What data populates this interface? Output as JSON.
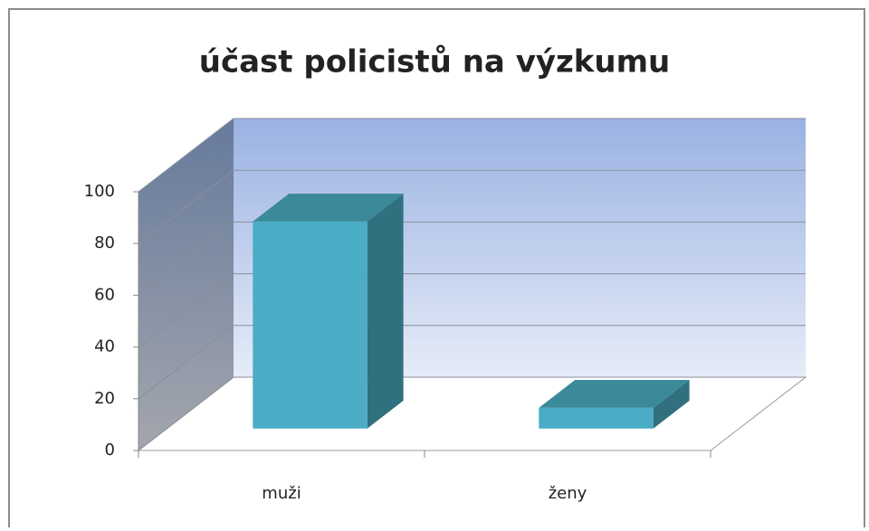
{
  "chart_data": {
    "type": "bar3d",
    "title": "účast policistů na výzkumu",
    "categories": [
      "muži",
      "ženy"
    ],
    "values": [
      80,
      8
    ],
    "color": "#4bacc6",
    "ylim": [
      0,
      100
    ],
    "yticks": [
      0,
      20,
      40,
      60,
      80,
      100
    ],
    "grid": true
  }
}
